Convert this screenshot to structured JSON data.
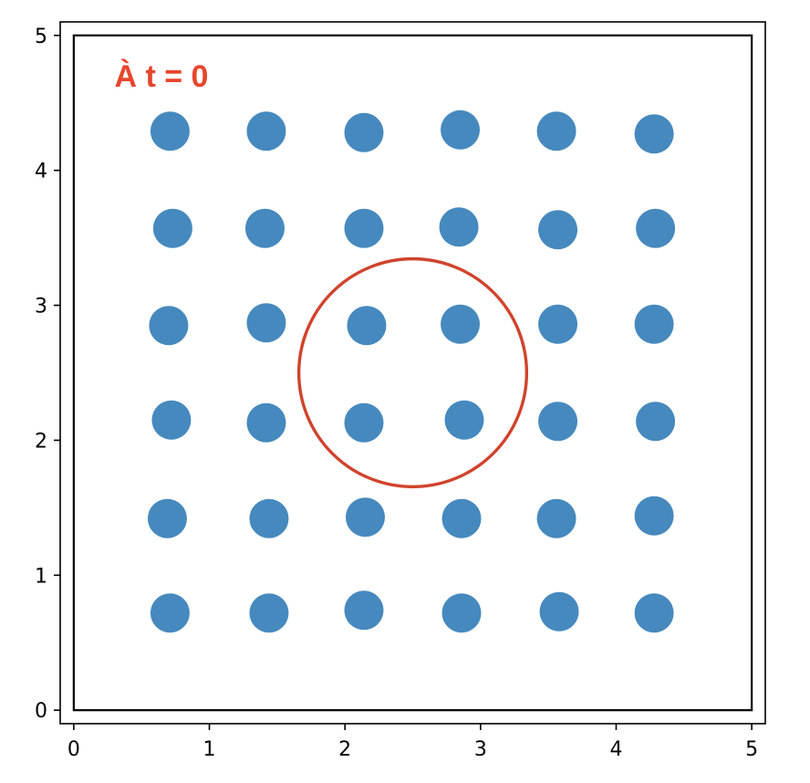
{
  "chart_data": {
    "type": "scatter",
    "title": "",
    "xlabel": "",
    "ylabel": "",
    "xlim": [
      -0.1,
      5.1
    ],
    "ylim": [
      -0.1,
      5.1
    ],
    "xticks": [
      0,
      1,
      2,
      3,
      4,
      5
    ],
    "yticks": [
      0,
      1,
      2,
      3,
      4,
      5
    ],
    "xtick_labels": [
      "0",
      "1",
      "2",
      "3",
      "4",
      "5"
    ],
    "ytick_labels": [
      "0",
      "1",
      "2",
      "3",
      "4",
      "5"
    ],
    "grid": false,
    "annotation": {
      "text": "À t = 0",
      "color": "#e8452c",
      "x": 0.3,
      "y": 4.7
    },
    "domain_box": {
      "x0": 0,
      "y0": 0,
      "x1": 5,
      "y1": 5,
      "color": "#000000"
    },
    "circle": {
      "cx": 2.5,
      "cy": 2.5,
      "r": 0.84,
      "color": "#d0432c"
    },
    "series": [
      {
        "color": "#4689be",
        "points": [
          {
            "x": 0.71,
            "y": 4.29
          },
          {
            "x": 1.42,
            "y": 4.29
          },
          {
            "x": 2.14,
            "y": 4.28
          },
          {
            "x": 2.85,
            "y": 4.3
          },
          {
            "x": 3.56,
            "y": 4.29
          },
          {
            "x": 4.28,
            "y": 4.27
          },
          {
            "x": 0.73,
            "y": 3.57
          },
          {
            "x": 1.41,
            "y": 3.57
          },
          {
            "x": 2.14,
            "y": 3.57
          },
          {
            "x": 2.84,
            "y": 3.58
          },
          {
            "x": 3.57,
            "y": 3.56
          },
          {
            "x": 4.29,
            "y": 3.57
          },
          {
            "x": 0.7,
            "y": 2.85
          },
          {
            "x": 1.42,
            "y": 2.87
          },
          {
            "x": 2.16,
            "y": 2.85
          },
          {
            "x": 2.85,
            "y": 2.86
          },
          {
            "x": 3.57,
            "y": 2.86
          },
          {
            "x": 4.28,
            "y": 2.86
          },
          {
            "x": 0.72,
            "y": 2.15
          },
          {
            "x": 1.42,
            "y": 2.13
          },
          {
            "x": 2.14,
            "y": 2.13
          },
          {
            "x": 2.88,
            "y": 2.15
          },
          {
            "x": 3.57,
            "y": 2.14
          },
          {
            "x": 4.29,
            "y": 2.14
          },
          {
            "x": 0.69,
            "y": 1.42
          },
          {
            "x": 1.44,
            "y": 1.42
          },
          {
            "x": 2.15,
            "y": 1.43
          },
          {
            "x": 2.86,
            "y": 1.42
          },
          {
            "x": 3.56,
            "y": 1.42
          },
          {
            "x": 4.28,
            "y": 1.44
          },
          {
            "x": 0.71,
            "y": 0.72
          },
          {
            "x": 1.44,
            "y": 0.72
          },
          {
            "x": 2.14,
            "y": 0.74
          },
          {
            "x": 2.86,
            "y": 0.72
          },
          {
            "x": 3.58,
            "y": 0.73
          },
          {
            "x": 4.28,
            "y": 0.72
          }
        ]
      }
    ]
  }
}
